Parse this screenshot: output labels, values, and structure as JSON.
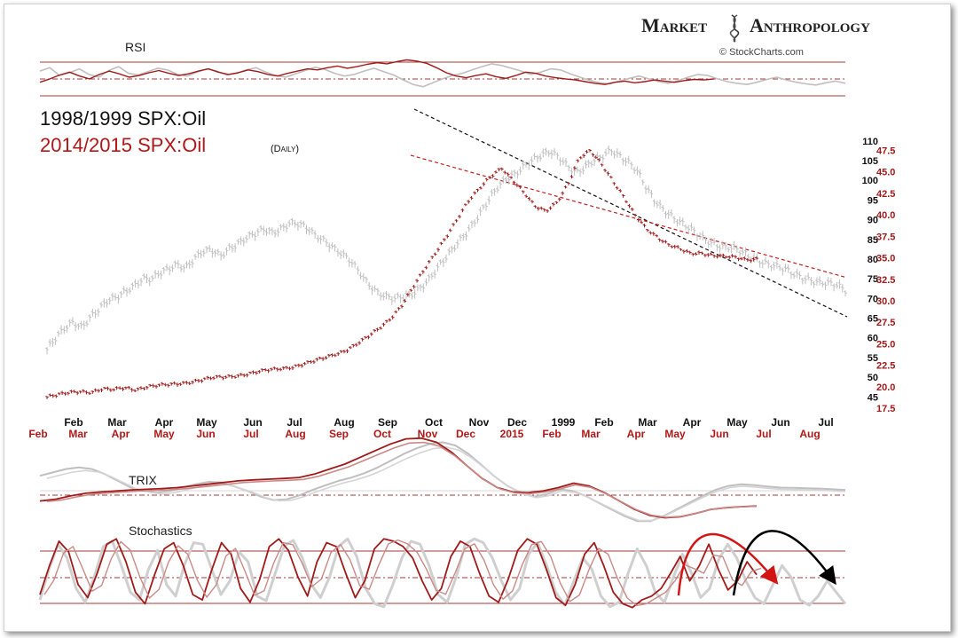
{
  "brand": {
    "name_part1": "Market",
    "name_part2": "Anthropology",
    "credit": "© StockCharts.com"
  },
  "colors": {
    "gray_series": "#bfbfbf",
    "red_series": "#a11a1a",
    "red_light": "#c98a87",
    "guide_line": "#a33a3a",
    "trend_black": "#111111",
    "trend_red": "#c41e1e",
    "arrow_red": "#d41414",
    "arrow_black": "#000000"
  },
  "chart_data": [
    {
      "type": "line",
      "panel": "rsi",
      "label": "RSI",
      "guide_levels": [
        "overbought",
        "midline",
        "oversold"
      ],
      "series": [
        {
          "name": "1998/1999",
          "color_key": "gray_series",
          "values": [
            66,
            72,
            58,
            63,
            70,
            60,
            55,
            67,
            74,
            62,
            59,
            65,
            71,
            68,
            60,
            57,
            64,
            70,
            66,
            59,
            62,
            68,
            72,
            64,
            58,
            55,
            61,
            67,
            73,
            69,
            62,
            57,
            60,
            66,
            71,
            65,
            59,
            50,
            42,
            38,
            45,
            52,
            58,
            62,
            68,
            74,
            79,
            76,
            71,
            66,
            60,
            64,
            70,
            68,
            61,
            55,
            49,
            45,
            43,
            48,
            53,
            57,
            52,
            47,
            44,
            49,
            55,
            60,
            58,
            52,
            47,
            44,
            42,
            46,
            51,
            55,
            50,
            46,
            43,
            41,
            45,
            48,
            44
          ]
        },
        {
          "name": "2014/2015",
          "color_key": "red_series",
          "values": [
            46,
            52,
            59,
            64,
            57,
            52,
            60,
            66,
            61,
            55,
            58,
            63,
            67,
            62,
            58,
            61,
            66,
            70,
            64,
            60,
            63,
            68,
            65,
            60,
            57,
            62,
            66,
            70,
            68,
            72,
            75,
            71,
            74,
            78,
            81,
            79,
            83,
            86,
            84,
            80,
            72,
            63,
            57,
            54,
            58,
            61,
            56,
            53,
            58,
            64,
            62,
            57,
            54,
            52,
            50,
            47,
            44,
            42,
            46,
            48,
            45,
            47,
            50,
            48,
            46,
            49,
            51,
            50,
            52
          ]
        }
      ]
    },
    {
      "type": "ohlc",
      "panel": "price",
      "series": [
        {
          "name": "1998/1999 SPX:Oil",
          "axis": "left",
          "ylim": [
            41,
            112
          ],
          "x_range": [
            0,
            900
          ],
          "color_key": "gray_series",
          "values": [
            57,
            59.5,
            62,
            64,
            63,
            65.5,
            67,
            69,
            70,
            72,
            73.5,
            75,
            74.5,
            76,
            77.5,
            79,
            78,
            80,
            81.5,
            82,
            81,
            83,
            84,
            85,
            86,
            87.5,
            87,
            88,
            89,
            88.5,
            87.5,
            86,
            85,
            83,
            81,
            79,
            76.5,
            74,
            72,
            70.5,
            69.5,
            70,
            71,
            73,
            75,
            77.5,
            80,
            83,
            86,
            89,
            92,
            95,
            98,
            100.5,
            102,
            104,
            105,
            106,
            107,
            106,
            104,
            102,
            103,
            104.5,
            106,
            108,
            106.5,
            104.5,
            102,
            98,
            95,
            93,
            91,
            89,
            87.5,
            86,
            85,
            84,
            83,
            82.5,
            81.5,
            80.5,
            80,
            79,
            78,
            77,
            76,
            75.5,
            75,
            74,
            73.5,
            73,
            72
          ]
        },
        {
          "name": "2014/2015 SPX:Oil",
          "axis": "right",
          "ylim": [
            17,
            49.5
          ],
          "x_range": [
            0,
            800
          ],
          "color_key": "red_series",
          "values": [
            18.8,
            19,
            19.3,
            19.5,
            19.4,
            19.7,
            19.6,
            19.9,
            19.7,
            20,
            20.1,
            20.2,
            20.4,
            20.6,
            20.8,
            21,
            21.1,
            21.3,
            21.5,
            21.7,
            21.9,
            22.1,
            22.3,
            22.6,
            22.9,
            23.3,
            23.8,
            24.3,
            25,
            25.8,
            26.8,
            28,
            29.5,
            31.5,
            33.5,
            35.5,
            37.5,
            39.5,
            41.5,
            43,
            44.5,
            45.5,
            44,
            42.5,
            41,
            40.5,
            41.5,
            43.5,
            46.5,
            47.5,
            46,
            44,
            42,
            40,
            38.5,
            37.5,
            36.5,
            36,
            35.5,
            35.6,
            35.3,
            35.1,
            35,
            34.8,
            34.9
          ]
        }
      ]
    },
    {
      "type": "line",
      "panel": "trix",
      "label": "TRIX",
      "guide_levels": [
        "zero"
      ],
      "series": [
        {
          "name": "1998/1999",
          "color_key": "gray_series",
          "values": [
            0.5,
            0.6,
            0.7,
            0.75,
            0.7,
            0.55,
            0.35,
            0.15,
            0.05,
            0,
            0.05,
            0.15,
            0.25,
            0.32,
            0.3,
            0.18,
            0.05,
            -0.12,
            -0.22,
            -0.2,
            -0.08,
            0.08,
            0.22,
            0.35,
            0.45,
            0.58,
            0.75,
            0.95,
            1.15,
            1.32,
            1.45,
            1.5,
            1.4,
            1.15,
            0.82,
            0.48,
            0.2,
            0,
            -0.12,
            -0.05,
            0.1,
            0.05,
            -0.1,
            -0.3,
            -0.5,
            -0.7,
            -0.85,
            -0.85,
            -0.7,
            -0.5,
            -0.3,
            -0.1,
            0.08,
            0.2,
            0.25,
            0.22,
            0.18,
            0.15,
            0.14,
            0.13,
            0.12,
            0.1,
            0.08
          ]
        },
        {
          "name": "2014/2015",
          "color_key": "red_series",
          "values": [
            -0.25,
            -0.2,
            -0.1,
            -0.02,
            0.02,
            0.05,
            0.08,
            0.1,
            0.12,
            0.15,
            0.2,
            0.25,
            0.3,
            0.35,
            0.38,
            0.4,
            0.42,
            0.45,
            0.55,
            0.7,
            0.85,
            1.05,
            1.25,
            1.45,
            1.6,
            1.62,
            1.5,
            1.2,
            0.8,
            0.42,
            0.15,
            0.02,
            0,
            0.05,
            0.15,
            0.28,
            0.2,
            0,
            -0.25,
            -0.5,
            -0.68,
            -0.75,
            -0.72,
            -0.62,
            -0.5,
            -0.45,
            -0.42,
            -0.4
          ]
        }
      ]
    },
    {
      "type": "line",
      "panel": "stochastics",
      "label": "Stochastics",
      "guide_levels": [
        "overbought",
        "midline",
        "oversold"
      ],
      "series": [
        {
          "name": "1998/1999",
          "color_key": "gray_series",
          "values": [
            15,
            55,
            88,
            70,
            30,
            12,
            45,
            85,
            92,
            60,
            25,
            15,
            55,
            80,
            35,
            20,
            62,
            90,
            88,
            55,
            22,
            40,
            78,
            65,
            20,
            14,
            50,
            86,
            93,
            70,
            35,
            18,
            45,
            85,
            95,
            72,
            30,
            10,
            6,
            35,
            70,
            92,
            88,
            60,
            22,
            12,
            45,
            88,
            95,
            90,
            70,
            40,
            15,
            30,
            75,
            90,
            60,
            25,
            8,
            40,
            70,
            55,
            20,
            6,
            12,
            50,
            82,
            60,
            25,
            12,
            45,
            75,
            50,
            18,
            30,
            68,
            88,
            70,
            40,
            18,
            10,
            35,
            60,
            45,
            15,
            8,
            20,
            40,
            25,
            10
          ]
        },
        {
          "name": "2014/2015",
          "color_key": "red_series",
          "values": [
            22,
            60,
            92,
            78,
            35,
            18,
            50,
            88,
            95,
            65,
            25,
            10,
            48,
            82,
            90,
            60,
            22,
            15,
            55,
            90,
            75,
            30,
            12,
            42,
            85,
            95,
            80,
            45,
            20,
            65,
            90,
            85,
            50,
            18,
            40,
            82,
            95,
            92,
            85,
            70,
            40,
            15,
            30,
            72,
            92,
            85,
            50,
            20,
            12,
            42,
            80,
            95,
            88,
            55,
            18,
            8,
            35,
            75,
            90,
            60,
            25,
            10,
            5,
            15,
            20,
            30,
            50,
            72,
            40,
            60,
            88,
            55,
            28,
            40,
            65,
            48
          ]
        }
      ]
    }
  ],
  "price_panel": {
    "title_gray": "1998/1999 SPX:Oil",
    "title_red": "2014/2015 SPX:Oil",
    "title_red_suffix": "(Daily)",
    "left_ticks": [
      "110",
      "105",
      "100",
      "95",
      "90",
      "85",
      "80",
      "75",
      "70",
      "65",
      "60",
      "55",
      "50",
      "45"
    ],
    "right_ticks": [
      "47.5",
      "45.0",
      "42.5",
      "40.0",
      "37.5",
      "35.0",
      "32.5",
      "30.0",
      "27.5",
      "25.0",
      "22.5",
      "20.0",
      "17.5"
    ]
  },
  "x_axis": {
    "black_labels": [
      "Feb",
      "Mar",
      "Apr",
      "May",
      "Jun",
      "Jul",
      "Aug",
      "Sep",
      "Oct",
      "Nov",
      "Dec",
      "1999",
      "Feb",
      "Mar",
      "Apr",
      "May",
      "Jun",
      "Jul"
    ],
    "red_labels": [
      "Feb",
      "Mar",
      "Apr",
      "May",
      "Jun",
      "Jul",
      "Aug",
      "Sep",
      "Oct",
      "Nov",
      "Dec",
      "2015",
      "Feb",
      "Mar",
      "Apr",
      "May",
      "Jun",
      "Jul",
      "Aug"
    ]
  }
}
